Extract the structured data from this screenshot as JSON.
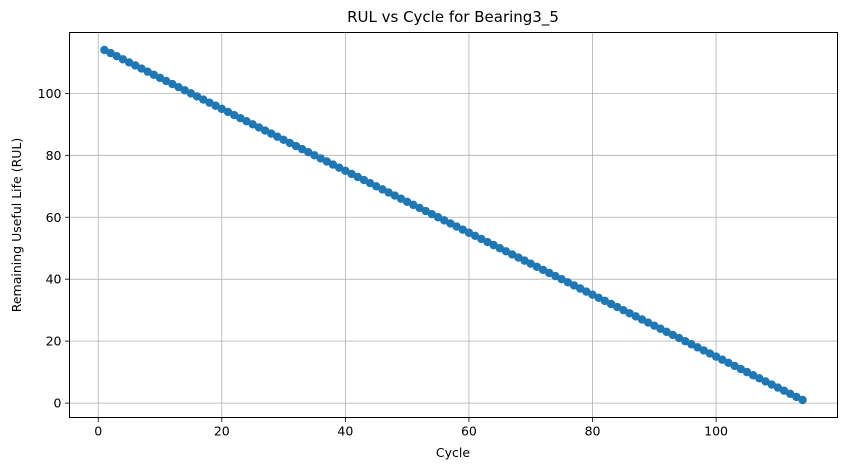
{
  "chart_data": {
    "type": "line",
    "title": "RUL vs Cycle for Bearing3_5",
    "xlabel": "Cycle",
    "ylabel": "Remaining Useful Life (RUL)",
    "xlim": [
      -4.65,
      119.65
    ],
    "ylim": [
      -4.65,
      119.65
    ],
    "xticks": [
      0,
      20,
      40,
      60,
      80,
      100
    ],
    "yticks": [
      0,
      20,
      40,
      60,
      80,
      100
    ],
    "grid": true,
    "marker": "circle",
    "series": [
      {
        "color": "#1f77b4",
        "x": [
          1,
          2,
          3,
          4,
          5,
          6,
          7,
          8,
          9,
          10,
          11,
          12,
          13,
          14,
          15,
          16,
          17,
          18,
          19,
          20,
          21,
          22,
          23,
          24,
          25,
          26,
          27,
          28,
          29,
          30,
          31,
          32,
          33,
          34,
          35,
          36,
          37,
          38,
          39,
          40,
          41,
          42,
          43,
          44,
          45,
          46,
          47,
          48,
          49,
          50,
          51,
          52,
          53,
          54,
          55,
          56,
          57,
          58,
          59,
          60,
          61,
          62,
          63,
          64,
          65,
          66,
          67,
          68,
          69,
          70,
          71,
          72,
          73,
          74,
          75,
          76,
          77,
          78,
          79,
          80,
          81,
          82,
          83,
          84,
          85,
          86,
          87,
          88,
          89,
          90,
          91,
          92,
          93,
          94,
          95,
          96,
          97,
          98,
          99,
          100,
          101,
          102,
          103,
          104,
          105,
          106,
          107,
          108,
          109,
          110,
          111,
          112,
          113,
          114
        ],
        "y": [
          114,
          113,
          112,
          111,
          110,
          109,
          108,
          107,
          106,
          105,
          104,
          103,
          102,
          101,
          100,
          99,
          98,
          97,
          96,
          95,
          94,
          93,
          92,
          91,
          90,
          89,
          88,
          87,
          86,
          85,
          84,
          83,
          82,
          81,
          80,
          79,
          78,
          77,
          76,
          75,
          74,
          73,
          72,
          71,
          70,
          69,
          68,
          67,
          66,
          65,
          64,
          63,
          62,
          61,
          60,
          59,
          58,
          57,
          56,
          55,
          54,
          53,
          52,
          51,
          50,
          49,
          48,
          47,
          46,
          45,
          44,
          43,
          42,
          41,
          40,
          39,
          38,
          37,
          36,
          35,
          34,
          33,
          32,
          31,
          30,
          29,
          28,
          27,
          26,
          25,
          24,
          23,
          22,
          21,
          20,
          19,
          18,
          17,
          16,
          15,
          14,
          13,
          12,
          11,
          10,
          9,
          8,
          7,
          6,
          5,
          4,
          3,
          2,
          1
        ]
      }
    ]
  }
}
